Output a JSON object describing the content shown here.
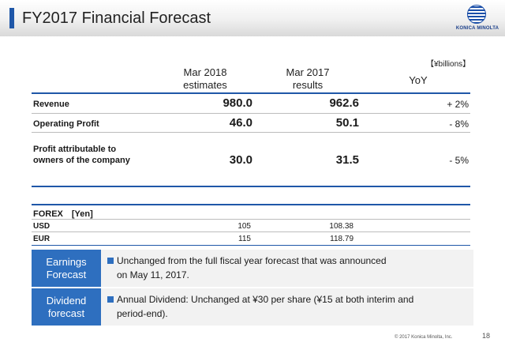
{
  "header": {
    "title": "FY2017 Financial Forecast",
    "logo_text": "KONICA MINOLTA"
  },
  "table": {
    "unit": "【¥billions】",
    "columns": {
      "estimates": [
        "Mar 2018",
        "estimates"
      ],
      "results": [
        "Mar 2017",
        "results"
      ],
      "yoy": "YoY"
    },
    "rows": [
      {
        "label": [
          "Revenue"
        ],
        "estimate": "980.0",
        "result": "962.6",
        "yoy": "+ 2%"
      },
      {
        "label": [
          "Operating Profit"
        ],
        "estimate": "46.0",
        "result": "50.1",
        "yoy": "- 8%"
      },
      {
        "label": [
          "Profit attributable to",
          "owners of the company"
        ],
        "estimate": "30.0",
        "result": "31.5",
        "yoy": "- 5%"
      }
    ]
  },
  "forex": {
    "title": "FOREX　[Yen]",
    "rows": [
      {
        "label": "USD",
        "estimate": "105",
        "result": "108.38"
      },
      {
        "label": "EUR",
        "estimate": "115",
        "result": "118.79"
      }
    ]
  },
  "boxes": [
    {
      "label": [
        "Earnings",
        "Forecast"
      ],
      "text": [
        "Unchanged from the full fiscal year forecast that was announced",
        "on May 11, 2017."
      ]
    },
    {
      "label": [
        "Dividend",
        "forecast"
      ],
      "text": [
        "Annual Dividend: Unchanged at ¥30 per share (¥15 at both interim and",
        "period-end)."
      ]
    }
  ],
  "footer": {
    "copyright": "© 2017 Konica Minolta, Inc.",
    "page": "18"
  },
  "colors": {
    "accent": "#1f57a8",
    "box_label": "#2e6fbf",
    "box_bg": "#f2f2f2"
  }
}
